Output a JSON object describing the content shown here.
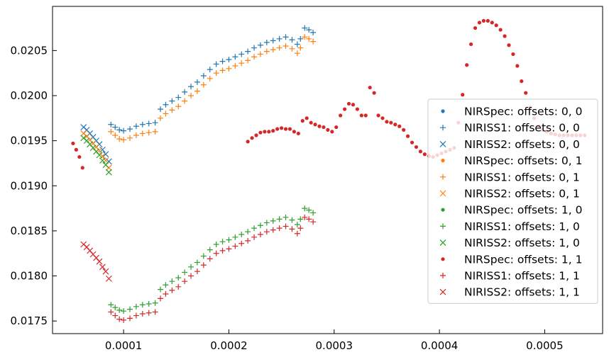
{
  "chart_data": {
    "type": "scatter",
    "title": "",
    "xlabel": "",
    "ylabel": "",
    "xlim": [
      3.25e-05,
      0.000555
    ],
    "ylim": [
      0.01736,
      0.02099
    ],
    "x_ticks": [
      0.0001,
      0.0002,
      0.0003,
      0.0004,
      0.0005
    ],
    "x_tick_labels": [
      "0.0001",
      "0.0002",
      "0.0003",
      "0.0004",
      "0.0005"
    ],
    "y_ticks": [
      0.0175,
      0.018,
      0.0185,
      0.019,
      0.0195,
      0.02,
      0.0205
    ],
    "y_tick_labels": [
      "0.0175",
      "0.0180",
      "0.0185",
      "0.0190",
      "0.0195",
      "0.0200",
      "0.0205"
    ],
    "grid": false,
    "legend_position": "right",
    "series": [
      {
        "name": "NIRSpec: offsets: 0, 0",
        "marker": "dot",
        "color": "#1f77b4",
        "points": []
      },
      {
        "name": "NIRISS1: offsets: 0, 0",
        "marker": "plus",
        "color": "#1f77b4",
        "points": [
          [
            8.8e-05,
            0.01968
          ],
          [
            9.2e-05,
            0.01965
          ],
          [
            9.6e-05,
            0.01962
          ],
          [
            0.0001,
            0.01961
          ],
          [
            0.000106,
            0.01963
          ],
          [
            0.000112,
            0.01966
          ],
          [
            0.000118,
            0.01968
          ],
          [
            0.000124,
            0.01969
          ],
          [
            0.00013,
            0.0197
          ],
          [
            0.000135,
            0.01985
          ],
          [
            0.00014,
            0.0199
          ],
          [
            0.000146,
            0.01994
          ],
          [
            0.000152,
            0.01998
          ],
          [
            0.000158,
            0.02004
          ],
          [
            0.000164,
            0.0201
          ],
          [
            0.00017,
            0.02015
          ],
          [
            0.000176,
            0.02022
          ],
          [
            0.000182,
            0.02029
          ],
          [
            0.000188,
            0.02035
          ],
          [
            0.000194,
            0.02038
          ],
          [
            0.0002,
            0.0204
          ],
          [
            0.000206,
            0.02043
          ],
          [
            0.000212,
            0.02046
          ],
          [
            0.000218,
            0.02049
          ],
          [
            0.000224,
            0.02053
          ],
          [
            0.00023,
            0.02056
          ],
          [
            0.000236,
            0.02059
          ],
          [
            0.000242,
            0.02061
          ],
          [
            0.000248,
            0.02063
          ],
          [
            0.000254,
            0.02065
          ],
          [
            0.00026,
            0.02062
          ],
          [
            0.000265,
            0.02057
          ],
          [
            0.000268,
            0.02063
          ],
          [
            0.000272,
            0.02075
          ],
          [
            0.000276,
            0.02073
          ],
          [
            0.00028,
            0.0207
          ]
        ]
      },
      {
        "name": "NIRISS2: offsets: 0, 0",
        "marker": "x",
        "color": "#1f77b4",
        "points": [
          [
            6.2e-05,
            0.01965
          ],
          [
            6.5e-05,
            0.01962
          ],
          [
            6.8e-05,
            0.01958
          ],
          [
            7.1e-05,
            0.01954
          ],
          [
            7.4e-05,
            0.0195
          ],
          [
            7.7e-05,
            0.01946
          ],
          [
            8e-05,
            0.0194
          ],
          [
            8.3e-05,
            0.01935
          ],
          [
            8.6e-05,
            0.01927
          ]
        ]
      },
      {
        "name": "NIRSpec: offsets: 0, 1",
        "marker": "dot",
        "color": "#ff7f0e",
        "points": []
      },
      {
        "name": "NIRISS1: offsets: 0, 1",
        "marker": "plus",
        "color": "#ff7f0e",
        "points": [
          [
            8.8e-05,
            0.0196
          ],
          [
            9.2e-05,
            0.01956
          ],
          [
            9.6e-05,
            0.01952
          ],
          [
            0.0001,
            0.01951
          ],
          [
            0.000106,
            0.01953
          ],
          [
            0.000112,
            0.01956
          ],
          [
            0.000118,
            0.01958
          ],
          [
            0.000124,
            0.01959
          ],
          [
            0.00013,
            0.0196
          ],
          [
            0.000135,
            0.01975
          ],
          [
            0.00014,
            0.0198
          ],
          [
            0.000146,
            0.01984
          ],
          [
            0.000152,
            0.01988
          ],
          [
            0.000158,
            0.01994
          ],
          [
            0.000164,
            0.02
          ],
          [
            0.00017,
            0.02005
          ],
          [
            0.000176,
            0.02012
          ],
          [
            0.000182,
            0.02019
          ],
          [
            0.000188,
            0.02025
          ],
          [
            0.000194,
            0.02028
          ],
          [
            0.0002,
            0.0203
          ],
          [
            0.000206,
            0.02033
          ],
          [
            0.000212,
            0.02036
          ],
          [
            0.000218,
            0.02039
          ],
          [
            0.000224,
            0.02043
          ],
          [
            0.00023,
            0.02046
          ],
          [
            0.000236,
            0.02049
          ],
          [
            0.000242,
            0.02051
          ],
          [
            0.000248,
            0.02053
          ],
          [
            0.000254,
            0.02055
          ],
          [
            0.00026,
            0.02052
          ],
          [
            0.000265,
            0.02047
          ],
          [
            0.000268,
            0.02053
          ],
          [
            0.000272,
            0.02065
          ],
          [
            0.000276,
            0.02063
          ],
          [
            0.00028,
            0.0206
          ]
        ]
      },
      {
        "name": "NIRISS2: offsets: 0, 1",
        "marker": "x",
        "color": "#ff7f0e",
        "points": [
          [
            6.2e-05,
            0.01958
          ],
          [
            6.5e-05,
            0.01955
          ],
          [
            6.8e-05,
            0.01951
          ],
          [
            7.1e-05,
            0.01947
          ],
          [
            7.4e-05,
            0.01943
          ],
          [
            7.7e-05,
            0.01939
          ],
          [
            8e-05,
            0.01933
          ],
          [
            8.3e-05,
            0.01928
          ],
          [
            8.6e-05,
            0.0192
          ]
        ]
      },
      {
        "name": "NIRSpec: offsets: 1, 0",
        "marker": "dot",
        "color": "#2ca02c",
        "points": []
      },
      {
        "name": "NIRISS1: offsets: 1, 0",
        "marker": "plus",
        "color": "#2ca02c",
        "points": [
          [
            8.8e-05,
            0.01768
          ],
          [
            9.2e-05,
            0.01765
          ],
          [
            9.6e-05,
            0.01762
          ],
          [
            0.0001,
            0.01761
          ],
          [
            0.000106,
            0.01763
          ],
          [
            0.000112,
            0.01766
          ],
          [
            0.000118,
            0.01768
          ],
          [
            0.000124,
            0.01769
          ],
          [
            0.00013,
            0.0177
          ],
          [
            0.000135,
            0.01785
          ],
          [
            0.00014,
            0.0179
          ],
          [
            0.000146,
            0.01794
          ],
          [
            0.000152,
            0.01798
          ],
          [
            0.000158,
            0.01804
          ],
          [
            0.000164,
            0.0181
          ],
          [
            0.00017,
            0.01815
          ],
          [
            0.000176,
            0.01822
          ],
          [
            0.000182,
            0.01829
          ],
          [
            0.000188,
            0.01835
          ],
          [
            0.000194,
            0.01838
          ],
          [
            0.0002,
            0.0184
          ],
          [
            0.000206,
            0.01843
          ],
          [
            0.000212,
            0.01846
          ],
          [
            0.000218,
            0.01849
          ],
          [
            0.000224,
            0.01853
          ],
          [
            0.00023,
            0.01856
          ],
          [
            0.000236,
            0.01859
          ],
          [
            0.000242,
            0.01861
          ],
          [
            0.000248,
            0.01863
          ],
          [
            0.000254,
            0.01865
          ],
          [
            0.00026,
            0.01862
          ],
          [
            0.000265,
            0.01857
          ],
          [
            0.000268,
            0.01863
          ],
          [
            0.000272,
            0.01875
          ],
          [
            0.000276,
            0.01873
          ],
          [
            0.00028,
            0.0187
          ]
        ]
      },
      {
        "name": "NIRISS2: offsets: 1, 0",
        "marker": "x",
        "color": "#2ca02c",
        "points": [
          [
            6.2e-05,
            0.01953
          ],
          [
            6.5e-05,
            0.0195
          ],
          [
            6.8e-05,
            0.01946
          ],
          [
            7.1e-05,
            0.01942
          ],
          [
            7.4e-05,
            0.01938
          ],
          [
            7.7e-05,
            0.01934
          ],
          [
            8e-05,
            0.01928
          ],
          [
            8.3e-05,
            0.01923
          ],
          [
            8.6e-05,
            0.01915
          ]
        ]
      },
      {
        "name": "NIRSpec: offsets: 1, 1",
        "marker": "dot",
        "color": "#d62728",
        "points": [
          [
            5.2e-05,
            0.01947
          ],
          [
            5.5e-05,
            0.0194
          ],
          [
            5.8e-05,
            0.01932
          ],
          [
            6.1e-05,
            0.0192
          ],
          [
            0.000218,
            0.01949
          ],
          [
            0.000222,
            0.01953
          ],
          [
            0.000226,
            0.01956
          ],
          [
            0.00023,
            0.01959
          ],
          [
            0.000234,
            0.0196
          ],
          [
            0.000238,
            0.0196
          ],
          [
            0.000242,
            0.01961
          ],
          [
            0.000246,
            0.01963
          ],
          [
            0.00025,
            0.01964
          ],
          [
            0.000254,
            0.01963
          ],
          [
            0.000258,
            0.01963
          ],
          [
            0.000262,
            0.0196
          ],
          [
            0.000266,
            0.01958
          ],
          [
            0.00027,
            0.01972
          ],
          [
            0.000274,
            0.01975
          ],
          [
            0.000278,
            0.0197
          ],
          [
            0.000282,
            0.01968
          ],
          [
            0.000286,
            0.01966
          ],
          [
            0.00029,
            0.01965
          ],
          [
            0.000294,
            0.01962
          ],
          [
            0.000298,
            0.0196
          ],
          [
            0.000302,
            0.01965
          ],
          [
            0.000306,
            0.01978
          ],
          [
            0.00031,
            0.01985
          ],
          [
            0.000314,
            0.01991
          ],
          [
            0.000318,
            0.0199
          ],
          [
            0.000322,
            0.01985
          ],
          [
            0.000326,
            0.01978
          ],
          [
            0.00033,
            0.01978
          ],
          [
            0.000334,
            0.02009
          ],
          [
            0.000338,
            0.02003
          ],
          [
            0.000342,
            0.01978
          ],
          [
            0.000346,
            0.01975
          ],
          [
            0.00035,
            0.01971
          ],
          [
            0.000354,
            0.0197
          ],
          [
            0.000358,
            0.01968
          ],
          [
            0.000362,
            0.01966
          ],
          [
            0.000366,
            0.01962
          ],
          [
            0.00037,
            0.01955
          ],
          [
            0.000374,
            0.01948
          ],
          [
            0.000378,
            0.01943
          ],
          [
            0.000382,
            0.01938
          ],
          [
            0.000386,
            0.01935
          ],
          [
            0.00039,
            0.01933
          ],
          [
            0.000394,
            0.01932
          ],
          [
            0.000398,
            0.01934
          ],
          [
            0.000402,
            0.01936
          ],
          [
            0.000406,
            0.01938
          ],
          [
            0.00041,
            0.0194
          ],
          [
            0.000414,
            0.01942
          ],
          [
            0.000418,
            0.0197
          ],
          [
            0.000422,
            0.02001
          ],
          [
            0.000426,
            0.02034
          ],
          [
            0.00043,
            0.02057
          ],
          [
            0.000434,
            0.02075
          ],
          [
            0.000438,
            0.02081
          ],
          [
            0.000442,
            0.02083
          ],
          [
            0.000446,
            0.02083
          ],
          [
            0.00045,
            0.02081
          ],
          [
            0.000454,
            0.02078
          ],
          [
            0.000458,
            0.02073
          ],
          [
            0.000462,
            0.02066
          ],
          [
            0.000466,
            0.02056
          ],
          [
            0.00047,
            0.02046
          ],
          [
            0.000474,
            0.02033
          ],
          [
            0.000478,
            0.02016
          ],
          [
            0.000482,
            0.02003
          ],
          [
            0.000486,
            0.01987
          ],
          [
            0.00049,
            0.01975
          ],
          [
            0.000494,
            0.01966
          ],
          [
            0.000498,
            0.01962
          ],
          [
            0.000502,
            0.0196
          ],
          [
            0.000506,
            0.01958
          ],
          [
            0.00051,
            0.01957
          ],
          [
            0.000514,
            0.01956
          ],
          [
            0.000518,
            0.01956
          ],
          [
            0.000522,
            0.01956
          ],
          [
            0.000526,
            0.01956
          ],
          [
            0.00053,
            0.01956
          ],
          [
            0.000534,
            0.01956
          ],
          [
            0.000538,
            0.01956
          ]
        ]
      },
      {
        "name": "NIRISS1: offsets: 1, 1",
        "marker": "plus",
        "color": "#d62728",
        "points": [
          [
            8.8e-05,
            0.0176
          ],
          [
            9.2e-05,
            0.01756
          ],
          [
            9.6e-05,
            0.01752
          ],
          [
            0.0001,
            0.01751
          ],
          [
            0.000106,
            0.01753
          ],
          [
            0.000112,
            0.01756
          ],
          [
            0.000118,
            0.01758
          ],
          [
            0.000124,
            0.01759
          ],
          [
            0.00013,
            0.0176
          ],
          [
            0.000135,
            0.01775
          ],
          [
            0.00014,
            0.0178
          ],
          [
            0.000146,
            0.01784
          ],
          [
            0.000152,
            0.01788
          ],
          [
            0.000158,
            0.01794
          ],
          [
            0.000164,
            0.018
          ],
          [
            0.00017,
            0.01805
          ],
          [
            0.000176,
            0.01812
          ],
          [
            0.000182,
            0.01819
          ],
          [
            0.000188,
            0.01825
          ],
          [
            0.000194,
            0.01828
          ],
          [
            0.0002,
            0.0183
          ],
          [
            0.000206,
            0.01833
          ],
          [
            0.000212,
            0.01836
          ],
          [
            0.000218,
            0.01839
          ],
          [
            0.000224,
            0.01843
          ],
          [
            0.00023,
            0.01846
          ],
          [
            0.000236,
            0.01849
          ],
          [
            0.000242,
            0.01851
          ],
          [
            0.000248,
            0.01853
          ],
          [
            0.000254,
            0.01855
          ],
          [
            0.00026,
            0.01852
          ],
          [
            0.000265,
            0.01847
          ],
          [
            0.000268,
            0.01853
          ],
          [
            0.000272,
            0.01865
          ],
          [
            0.000276,
            0.01863
          ],
          [
            0.00028,
            0.0186
          ]
        ]
      },
      {
        "name": "NIRISS2: offsets: 1, 1",
        "marker": "x",
        "color": "#d62728",
        "points": [
          [
            6.2e-05,
            0.01835
          ],
          [
            6.5e-05,
            0.01832
          ],
          [
            6.8e-05,
            0.01828
          ],
          [
            7.1e-05,
            0.01824
          ],
          [
            7.4e-05,
            0.0182
          ],
          [
            7.7e-05,
            0.01816
          ],
          [
            8e-05,
            0.0181
          ],
          [
            8.3e-05,
            0.01805
          ],
          [
            8.6e-05,
            0.01797
          ]
        ]
      }
    ]
  }
}
